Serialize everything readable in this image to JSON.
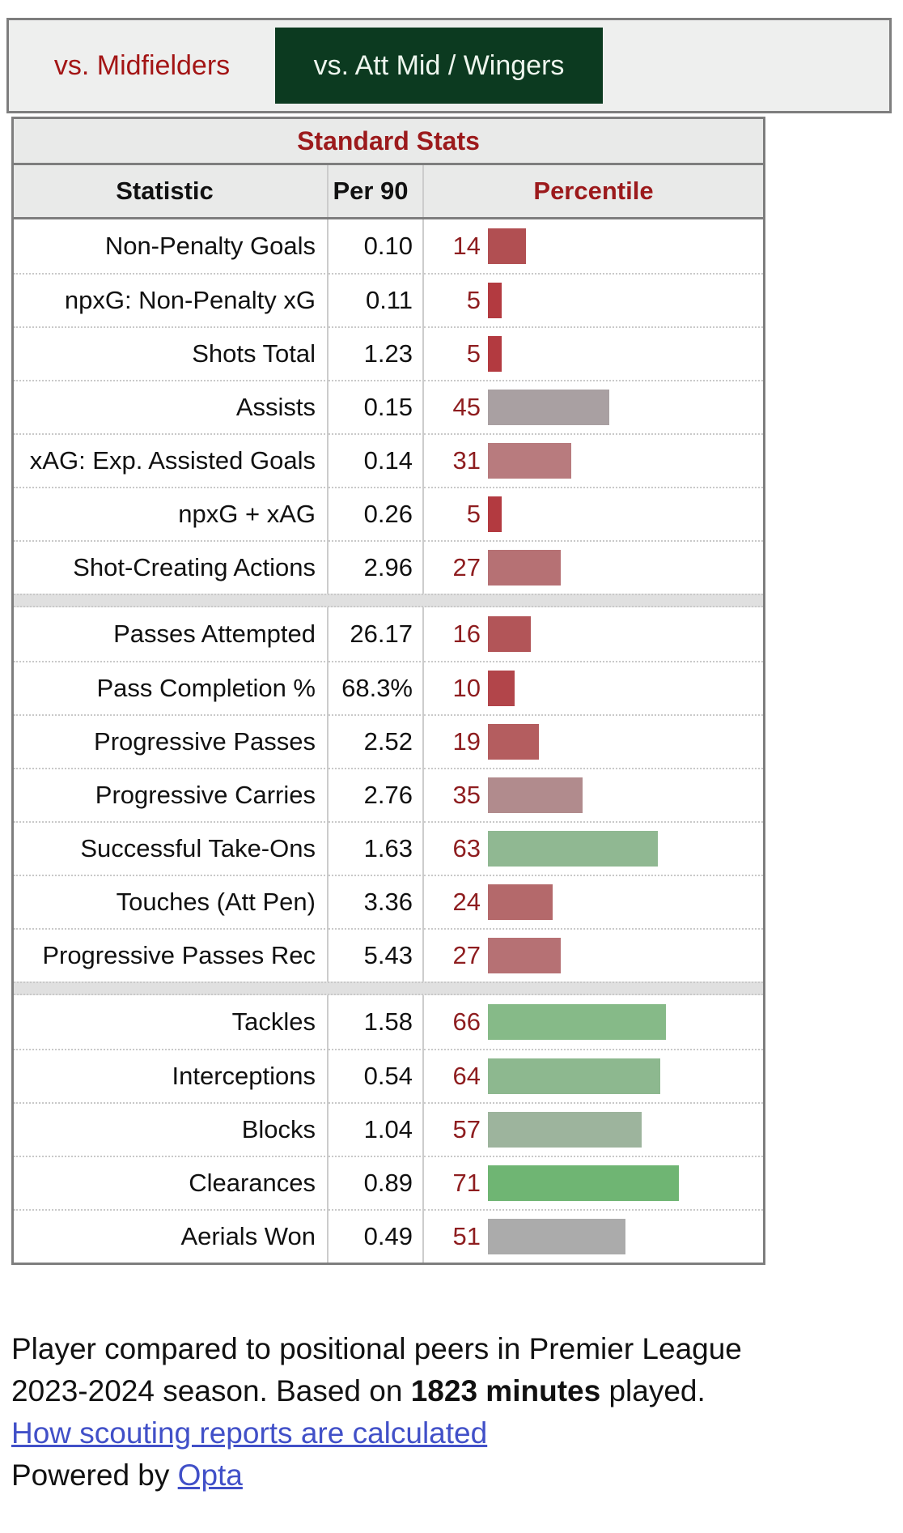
{
  "tabs": [
    {
      "label": "vs. Midfielders",
      "active": false
    },
    {
      "label": "vs. Att Mid / Wingers",
      "active": true
    }
  ],
  "table": {
    "title": "Standard Stats",
    "columns": [
      "Statistic",
      "Per 90",
      "Percentile"
    ],
    "groups": [
      {
        "rows": [
          {
            "stat": "Non-Penalty Goals",
            "per90": "0.10",
            "percentile": 14,
            "bar_color": "#b14f52"
          },
          {
            "stat": "npxG: Non-Penalty xG",
            "per90": "0.11",
            "percentile": 5,
            "bar_color": "#b33a40"
          },
          {
            "stat": "Shots Total",
            "per90": "1.23",
            "percentile": 5,
            "bar_color": "#b33a40"
          },
          {
            "stat": "Assists",
            "per90": "0.15",
            "percentile": 45,
            "bar_color": "#a9a0a2"
          },
          {
            "stat": "xAG: Exp. Assisted Goals",
            "per90": "0.14",
            "percentile": 31,
            "bar_color": "#b87b7e"
          },
          {
            "stat": "npxG + xAG",
            "per90": "0.26",
            "percentile": 5,
            "bar_color": "#b33a40"
          },
          {
            "stat": "Shot-Creating Actions",
            "per90": "2.96",
            "percentile": 27,
            "bar_color": "#b67174"
          }
        ]
      },
      {
        "rows": [
          {
            "stat": "Passes Attempted",
            "per90": "26.17",
            "percentile": 16,
            "bar_color": "#b25558"
          },
          {
            "stat": "Pass Completion %",
            "per90": "68.3%",
            "percentile": 10,
            "bar_color": "#b2454a"
          },
          {
            "stat": "Progressive Passes",
            "per90": "2.52",
            "percentile": 19,
            "bar_color": "#b45d5f"
          },
          {
            "stat": "Progressive Carries",
            "per90": "2.76",
            "percentile": 35,
            "bar_color": "#b18b8d"
          },
          {
            "stat": "Successful Take-Ons",
            "per90": "1.63",
            "percentile": 63,
            "bar_color": "#90b892"
          },
          {
            "stat": "Touches (Att Pen)",
            "per90": "3.36",
            "percentile": 24,
            "bar_color": "#b4696b"
          },
          {
            "stat": "Progressive Passes Rec",
            "per90": "5.43",
            "percentile": 27,
            "bar_color": "#b67174"
          }
        ]
      },
      {
        "rows": [
          {
            "stat": "Tackles",
            "per90": "1.58",
            "percentile": 66,
            "bar_color": "#86ba88"
          },
          {
            "stat": "Interceptions",
            "per90": "0.54",
            "percentile": 64,
            "bar_color": "#8db88f"
          },
          {
            "stat": "Blocks",
            "per90": "1.04",
            "percentile": 57,
            "bar_color": "#9db49d"
          },
          {
            "stat": "Clearances",
            "per90": "0.89",
            "percentile": 71,
            "bar_color": "#6fb573"
          },
          {
            "stat": "Aerials Won",
            "per90": "0.49",
            "percentile": 51,
            "bar_color": "#ababab"
          }
        ]
      }
    ]
  },
  "footer": {
    "line1": "Player compared to positional peers in Premier League",
    "line2_pre": "2023-2024 season. Based on ",
    "line2_bold": "1823 minutes",
    "line2_post": " played.",
    "link_how": "How scouting reports are calculated",
    "powered_pre": "Powered by ",
    "link_opta": "Opta"
  },
  "colors": {
    "active_tab_bg": "#0c3a20",
    "active_tab_text": "#eef6ee",
    "tab_red": "#a31515",
    "header_red": "#9c1a1c",
    "percentile_red": "#8e1d1f",
    "link_blue": "#4150c8",
    "table_border": "#7e7e7e",
    "header_bg": "#e9eae9"
  }
}
